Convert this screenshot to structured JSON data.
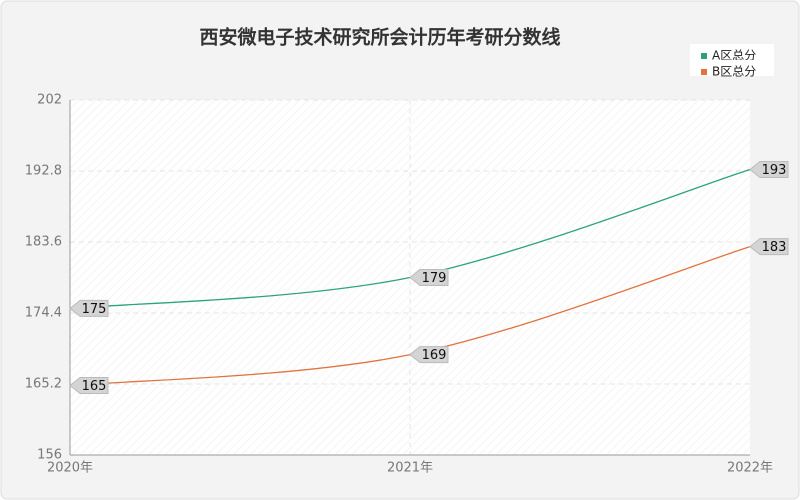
{
  "chart_data": {
    "type": "line",
    "title": "西安微电子技术研究所会计历年考研分数线",
    "categories": [
      "2020年",
      "2021年",
      "2022年"
    ],
    "series": [
      {
        "name": "A区总分",
        "color": "#2ca37c",
        "values": [
          175,
          179,
          193
        ]
      },
      {
        "name": "B区总分",
        "color": "#e0733f",
        "values": [
          165,
          169,
          183
        ]
      }
    ],
    "ylim": [
      156,
      202
    ],
    "yticks": [
      156,
      165.2,
      174.4,
      183.6,
      192.8,
      202
    ],
    "grid": true,
    "legend": "top-right"
  }
}
